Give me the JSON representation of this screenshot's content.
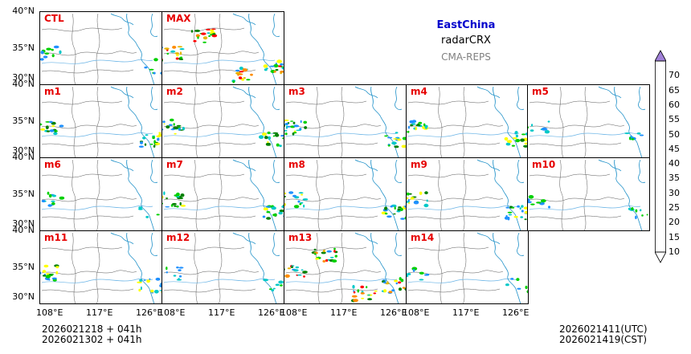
{
  "header": {
    "region": "EastChina",
    "product": "radarCRX",
    "system": "CMA-REPS"
  },
  "panels": [
    {
      "id": "CTL",
      "label": "CTL",
      "intensity": "low"
    },
    {
      "id": "MAX",
      "label": "MAX",
      "intensity": "high"
    },
    {
      "id": "m1",
      "label": "m1",
      "intensity": "mid"
    },
    {
      "id": "m2",
      "label": "m2",
      "intensity": "mid"
    },
    {
      "id": "m3",
      "label": "m3",
      "intensity": "mid"
    },
    {
      "id": "m4",
      "label": "m4",
      "intensity": "mid"
    },
    {
      "id": "m5",
      "label": "m5",
      "intensity": "low"
    },
    {
      "id": "m6",
      "label": "m6",
      "intensity": "low"
    },
    {
      "id": "m7",
      "label": "m7",
      "intensity": "mid"
    },
    {
      "id": "m8",
      "label": "m8",
      "intensity": "mid"
    },
    {
      "id": "m9",
      "label": "m9",
      "intensity": "mid"
    },
    {
      "id": "m10",
      "label": "m10",
      "intensity": "low"
    },
    {
      "id": "m11",
      "label": "m11",
      "intensity": "mid"
    },
    {
      "id": "m12",
      "label": "m12",
      "intensity": "low"
    },
    {
      "id": "m13",
      "label": "m13",
      "intensity": "high"
    },
    {
      "id": "m14",
      "label": "m14",
      "intensity": "low"
    }
  ],
  "axes": {
    "lat_labels": [
      "40°N",
      "35°N",
      "30°N"
    ],
    "lon_labels": [
      "108°E",
      "117°E",
      "126°E"
    ]
  },
  "colorbar": {
    "levels": [
      "10",
      "15",
      "20",
      "25",
      "30",
      "35",
      "40",
      "45",
      "50",
      "55",
      "60",
      "65",
      "70"
    ],
    "colors": [
      "#1e90ff",
      "#00c8c8",
      "#00d000",
      "#008000",
      "#ffff00",
      "#e6b400",
      "#ff8c00",
      "#ff0000",
      "#dc0000",
      "#b40000",
      "#ff00ff",
      "#9900cc",
      "#a080d8"
    ]
  },
  "footer": {
    "init_line1": "2026021218  +  041h",
    "init_line2": "2026021302  +  041h",
    "valid_utc": "2026021411(UTC)",
    "valid_cst": "2026021419(CST)"
  }
}
